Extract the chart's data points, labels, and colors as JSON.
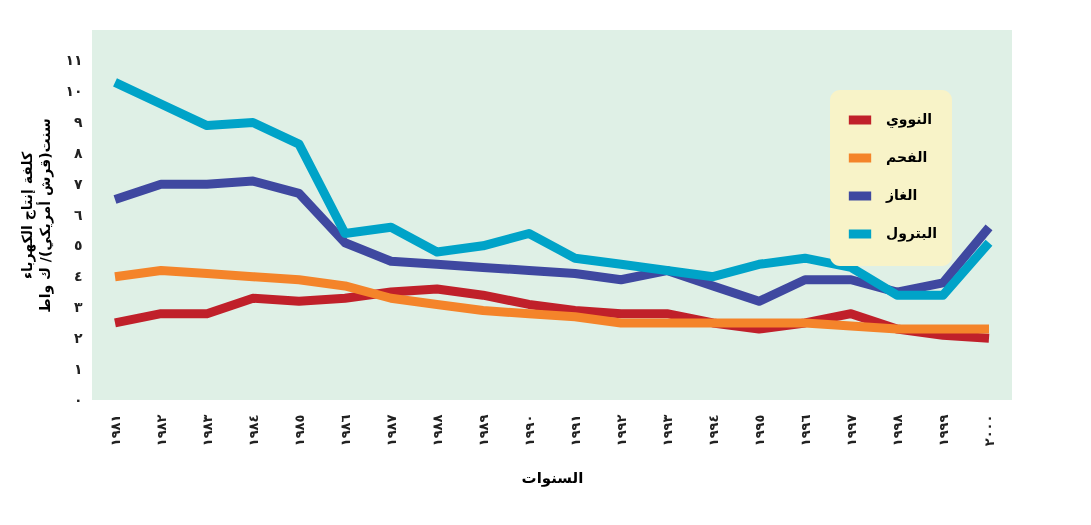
{
  "chart_data": {
    "type": "line",
    "xlabel": "السنوات",
    "ylabel": "كلفة إنتاج الكهرباء\nسنت(قرش أمريكي)/ ك واط",
    "categories": [
      "١٩٨١",
      "١٩٨٢",
      "١٩٨٣",
      "١٩٨٤",
      "١٩٨٥",
      "١٩٨٦",
      "١٩٨٧",
      "١٩٨٨",
      "١٩٨٩",
      "١٩٩٠",
      "١٩٩١",
      "١٩٩٢",
      "١٩٩٣",
      "١٩٩٤",
      "١٩٩٥",
      "١٩٩٦",
      "١٩٩٧",
      "١٩٩٨",
      "١٩٩٩",
      "٢٠٠٠"
    ],
    "series": [
      {
        "name": "النووي",
        "color": "#c0202a",
        "values": [
          2.5,
          2.8,
          2.8,
          3.3,
          3.2,
          3.3,
          3.5,
          3.6,
          3.4,
          3.1,
          2.9,
          2.8,
          2.8,
          2.5,
          2.3,
          2.5,
          2.8,
          2.3,
          2.1,
          2.0
        ]
      },
      {
        "name": "الفحم",
        "color": "#f4842a",
        "values": [
          4.0,
          4.2,
          4.1,
          4.0,
          3.9,
          3.7,
          3.3,
          3.1,
          2.9,
          2.8,
          2.7,
          2.5,
          2.5,
          2.5,
          2.5,
          2.5,
          2.4,
          2.3,
          2.3,
          2.3
        ]
      },
      {
        "name": "الغاز",
        "color": "#3f48a0",
        "values": [
          6.5,
          7.0,
          7.0,
          7.1,
          6.7,
          5.1,
          4.5,
          4.4,
          4.3,
          4.2,
          4.1,
          3.9,
          4.2,
          3.7,
          3.2,
          3.9,
          3.9,
          3.5,
          3.8,
          5.6
        ]
      },
      {
        "name": "البترول",
        "color": "#00a3c8",
        "values": [
          10.3,
          9.6,
          8.9,
          9.0,
          8.3,
          5.4,
          5.6,
          4.8,
          5.0,
          5.4,
          4.6,
          4.4,
          4.2,
          4.0,
          4.4,
          4.6,
          4.3,
          3.4,
          3.4,
          5.1
        ]
      }
    ],
    "ylim": [
      0,
      12
    ],
    "yticks": [
      {
        "value": 0,
        "label": "٠"
      },
      {
        "value": 1,
        "label": "١"
      },
      {
        "value": 2,
        "label": "٢"
      },
      {
        "value": 3,
        "label": "٣"
      },
      {
        "value": 4,
        "label": "٤"
      },
      {
        "value": 5,
        "label": "٥"
      },
      {
        "value": 6,
        "label": "٦"
      },
      {
        "value": 7,
        "label": "٧"
      },
      {
        "value": 8,
        "label": "٨"
      },
      {
        "value": 9,
        "label": "٩"
      },
      {
        "value": 10,
        "label": "١٠"
      },
      {
        "value": 11,
        "label": "١١"
      }
    ],
    "grid": false,
    "legend": "top right",
    "marker": "none",
    "line_style": "solid"
  }
}
